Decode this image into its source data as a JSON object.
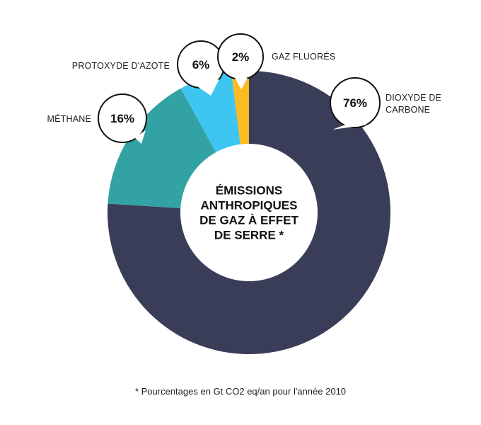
{
  "chart_data": {
    "type": "pie",
    "title": "ÉMISSIONS ANTHROPIQUES DE GAZ À EFFET DE SERRE *",
    "title_lines": [
      "ÉMISSIONS",
      "ANTHROPIQUES",
      "DE GAZ À EFFET",
      "DE SERRE *"
    ],
    "slices": [
      {
        "label": "DIOXYDE DE CARBONE",
        "label_lines": [
          "DIOXYDE DE",
          "CARBONE"
        ],
        "value": 76,
        "display": "76%",
        "color": "#3a3d58"
      },
      {
        "label": "MÉTHANE",
        "label_lines": [
          "MÉTHANE"
        ],
        "value": 16,
        "display": "16%",
        "color": "#32a2a5"
      },
      {
        "label": "PROTOXYDE D'AZOTE",
        "label_lines": [
          "PROTOXYDE D'AZOTE"
        ],
        "value": 6,
        "display": "6%",
        "color": "#3ec6f2"
      },
      {
        "label": "GAZ FLUORÉS",
        "label_lines": [
          "GAZ FLUORÉS"
        ],
        "value": 2,
        "display": "2%",
        "color": "#fbbb21"
      }
    ],
    "footnote": "* Pourcentages en Gt CO2 eq/an pour l'année 2010",
    "style": "donut"
  }
}
